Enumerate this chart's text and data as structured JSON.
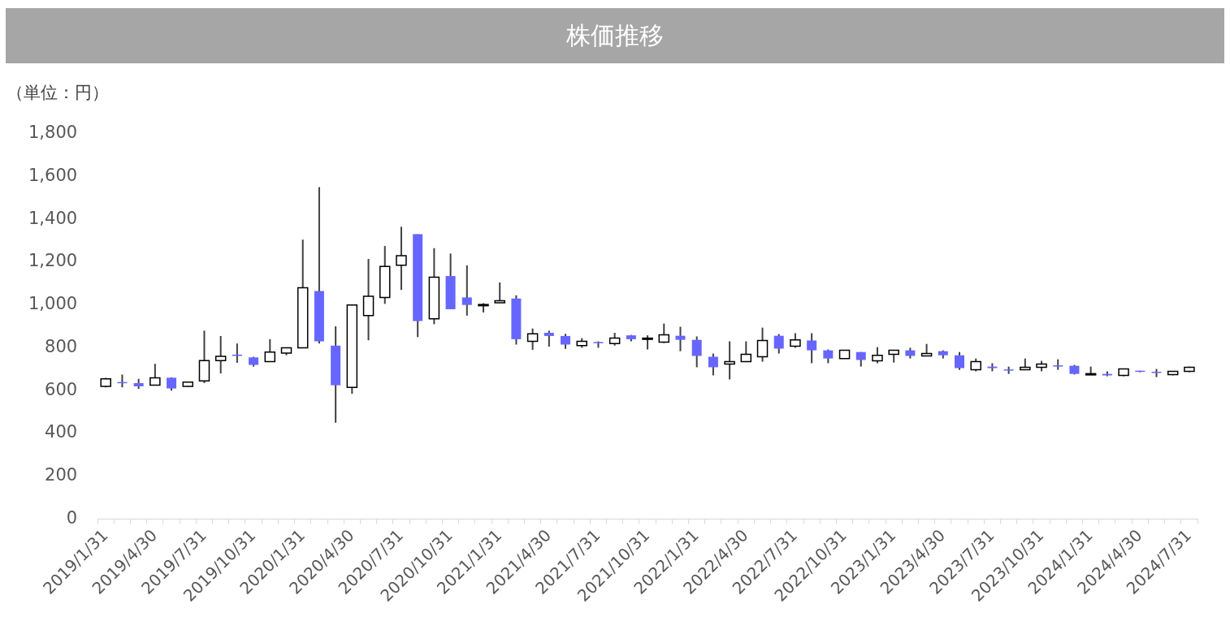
{
  "chart_data": {
    "type": "candlestick",
    "title": "株価推移",
    "ylabel": "（単位：円）",
    "categories": [
      "2019/1/31",
      null,
      null,
      "2019/4/30",
      null,
      null,
      "2019/7/31",
      null,
      null,
      "2019/10/31",
      null,
      null,
      "2020/1/31",
      null,
      null,
      "2020/4/30",
      null,
      null,
      "2020/7/31",
      null,
      null,
      "2020/10/31",
      null,
      null,
      "2021/1/31",
      null,
      null,
      "2021/4/30",
      null,
      null,
      "2021/7/31",
      null,
      null,
      "2021/10/31",
      null,
      null,
      "2022/1/31",
      null,
      null,
      "2022/4/30",
      null,
      null,
      "2022/7/31",
      null,
      null,
      "2022/10/31",
      null,
      null,
      "2023/1/31",
      null,
      null,
      "2023/4/30",
      null,
      null,
      "2023/7/31",
      null,
      null,
      "2023/10/31",
      null,
      null,
      "2024/1/31",
      null,
      null,
      "2024/4/30",
      null,
      null,
      "2024/7/31"
    ],
    "ohlc": [
      [
        620,
        660,
        615,
        655
      ],
      [
        640,
        675,
        615,
        638
      ],
      [
        635,
        655,
        608,
        620
      ],
      [
        625,
        725,
        625,
        660
      ],
      [
        660,
        662,
        600,
        610
      ],
      [
        620,
        642,
        618,
        640
      ],
      [
        645,
        880,
        635,
        740
      ],
      [
        740,
        855,
        680,
        760
      ],
      [
        768,
        820,
        730,
        762
      ],
      [
        755,
        758,
        712,
        720
      ],
      [
        735,
        840,
        735,
        780
      ],
      [
        775,
        800,
        765,
        800
      ],
      [
        800,
        1305,
        800,
        1080
      ],
      [
        1065,
        1550,
        820,
        830
      ],
      [
        810,
        900,
        450,
        625
      ],
      [
        615,
        1000,
        585,
        1000
      ],
      [
        950,
        1215,
        835,
        1040
      ],
      [
        1035,
        1275,
        1005,
        1180
      ],
      [
        1185,
        1365,
        1070,
        1230
      ],
      [
        1330,
        1330,
        850,
        925
      ],
      [
        935,
        1265,
        910,
        1130
      ],
      [
        1135,
        1240,
        980,
        980
      ],
      [
        1035,
        1185,
        950,
        1000
      ],
      [
        998,
        1008,
        965,
        1002
      ],
      [
        1010,
        1105,
        1010,
        1020
      ],
      [
        1030,
        1045,
        815,
        840
      ],
      [
        830,
        890,
        790,
        865
      ],
      [
        870,
        880,
        805,
        855
      ],
      [
        855,
        865,
        795,
        815
      ],
      [
        810,
        845,
        800,
        830
      ],
      [
        827,
        830,
        800,
        823
      ],
      [
        820,
        870,
        810,
        845
      ],
      [
        858,
        860,
        830,
        840
      ],
      [
        843,
        858,
        792,
        845
      ],
      [
        826,
        913,
        822,
        860
      ],
      [
        856,
        898,
        784,
        837
      ],
      [
        837,
        853,
        709,
        762
      ],
      [
        758,
        773,
        671,
        709
      ],
      [
        724,
        830,
        652,
        735
      ],
      [
        735,
        830,
        733,
        769
      ],
      [
        758,
        894,
        735,
        834
      ],
      [
        856,
        864,
        773,
        796
      ],
      [
        807,
        868,
        800,
        837
      ],
      [
        834,
        868,
        728,
        788
      ],
      [
        788,
        792,
        728,
        750
      ],
      [
        750,
        788,
        750,
        788
      ],
      [
        780,
        780,
        712,
        743
      ],
      [
        739,
        803,
        728,
        765
      ],
      [
        769,
        788,
        731,
        788
      ],
      [
        788,
        800,
        750,
        762
      ],
      [
        762,
        818,
        762,
        773
      ],
      [
        784,
        788,
        750,
        765
      ],
      [
        765,
        780,
        697,
        705
      ],
      [
        697,
        750,
        690,
        735
      ],
      [
        712,
        728,
        690,
        705
      ],
      [
        699,
        712,
        678,
        695
      ],
      [
        697,
        750,
        697,
        709
      ],
      [
        709,
        739,
        690,
        724
      ],
      [
        718,
        746,
        697,
        714
      ],
      [
        716,
        720,
        675,
        678
      ],
      [
        678,
        712,
        677,
        679
      ],
      [
        678,
        690,
        667,
        671
      ],
      [
        671,
        701,
        667,
        701
      ],
      [
        693,
        693,
        686,
        690
      ],
      [
        688,
        701,
        663,
        686
      ],
      [
        675,
        690,
        671,
        690
      ],
      [
        690,
        712,
        686,
        709
      ]
    ],
    "colors": [
      "#ffffff",
      "#6666ff",
      "#6666ff",
      "#ffffff",
      "#6666ff",
      "#ffffff",
      "#ffffff",
      "#ffffff",
      "#6666ff",
      "#6666ff",
      "#ffffff",
      "#ffffff",
      "#ffffff",
      "#6666ff",
      "#6666ff",
      "#ffffff",
      "#ffffff",
      "#ffffff",
      "#ffffff",
      "#6666ff",
      "#ffffff",
      "#6666ff",
      "#6666ff",
      "#ffffff",
      "#ffffff",
      "#6666ff",
      "#ffffff",
      "#6666ff",
      "#6666ff",
      "#ffffff",
      "#6666ff",
      "#ffffff",
      "#6666ff",
      "#ffffff",
      "#ffffff",
      "#6666ff",
      "#6666ff",
      "#6666ff",
      "#ffffff",
      "#ffffff",
      "#ffffff",
      "#6666ff",
      "#ffffff",
      "#6666ff",
      "#6666ff",
      "#ffffff",
      "#6666ff",
      "#ffffff",
      "#ffffff",
      "#6666ff",
      "#ffffff",
      "#6666ff",
      "#6666ff",
      "#ffffff",
      "#6666ff",
      "#6666ff",
      "#ffffff",
      "#ffffff",
      "#6666ff",
      "#6666ff",
      "#ffffff",
      "#6666ff",
      "#ffffff",
      "#6666ff",
      "#6666ff",
      "#ffffff",
      "#ffffff"
    ],
    "ylim": [
      0,
      1800
    ],
    "yticks": [
      0,
      200,
      400,
      600,
      800,
      {
        "value": 1000,
        "label": "1,000"
      },
      {
        "value": 1200,
        "label": "1,200"
      },
      {
        "value": 1400,
        "label": "1,400"
      },
      {
        "value": 1600,
        "label": "1,600"
      },
      {
        "value": 1800,
        "label": "1,800"
      }
    ],
    "grid": false,
    "legend": false
  }
}
